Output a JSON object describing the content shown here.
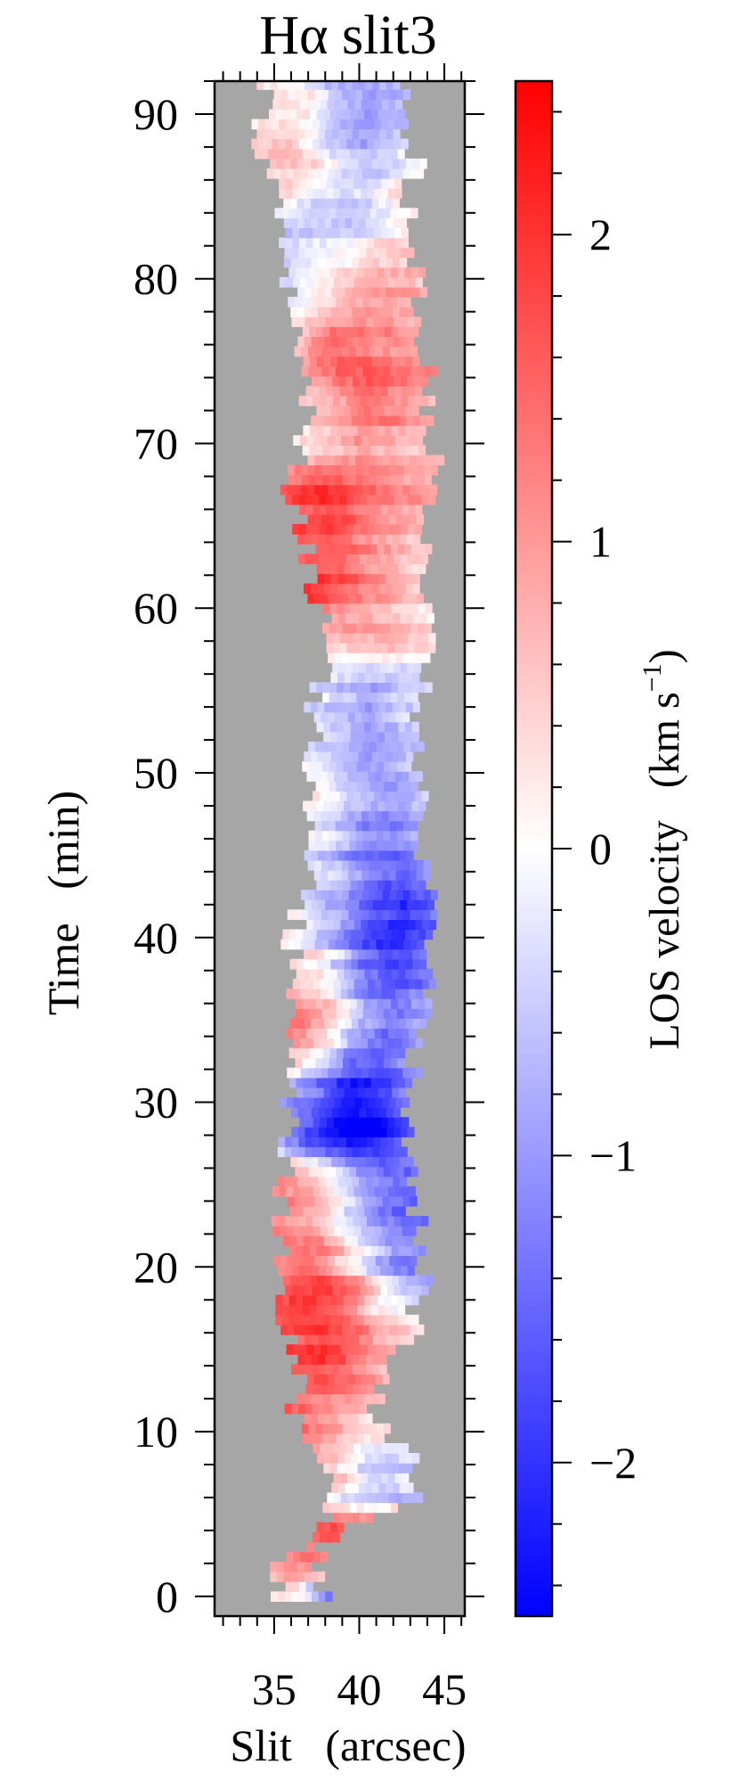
{
  "chart_data": {
    "type": "heatmap",
    "title": "Hα slit3",
    "xlabel": "Slit   (arcsec)",
    "ylabel": "Time   (min)",
    "xlim": [
      31.5,
      46.2
    ],
    "ylim": [
      -1.2,
      92.0
    ],
    "x_ticks": [
      35,
      40,
      45
    ],
    "y_ticks": [
      0,
      10,
      20,
      30,
      40,
      50,
      60,
      70,
      80,
      90
    ],
    "background_color": "#a6a6a6",
    "colorbar": {
      "label": "LOS velocity   (km s",
      "label_superscript": "−1",
      "label_close": ")",
      "range": [
        -2.5,
        2.5
      ],
      "ticks": [
        2,
        1,
        0,
        -1,
        -2
      ],
      "tick_labels": [
        "2",
        "1",
        "0",
        "−1",
        "−2"
      ],
      "colormap": [
        "#0000ff",
        "#ffffff",
        "#ff0000"
      ]
    },
    "bands": [
      {
        "t": 91.2,
        "start": 34.6,
        "end": 42.5,
        "v": [
          0.4,
          0.3,
          -0.6,
          -0.8,
          -0.5
        ]
      },
      {
        "t": 88.0,
        "start": 34.0,
        "end": 43.0,
        "v": [
          0.5,
          0.6,
          -0.5,
          -0.9,
          -0.4
        ]
      },
      {
        "t": 85.0,
        "start": 35.2,
        "end": 42.8,
        "v": [
          0.2,
          -0.3,
          -0.6,
          -0.4,
          0.3
        ]
      },
      {
        "t": 82.0,
        "start": 35.0,
        "end": 43.0,
        "v": [
          -0.6,
          -0.4,
          -0.2,
          0.2,
          0.4
        ]
      },
      {
        "t": 79.0,
        "start": 36.0,
        "end": 43.5,
        "v": [
          -0.3,
          0.2,
          0.8,
          1.0,
          0.6
        ]
      },
      {
        "t": 76.0,
        "start": 36.4,
        "end": 43.2,
        "v": [
          0.8,
          1.7,
          1.4,
          1.2,
          1.0
        ]
      },
      {
        "t": 73.0,
        "start": 37.0,
        "end": 44.0,
        "v": [
          0.6,
          1.0,
          1.5,
          1.2,
          0.9
        ]
      },
      {
        "t": 70.0,
        "start": 36.5,
        "end": 44.0,
        "v": [
          0.3,
          0.6,
          1.0,
          0.8,
          0.6
        ]
      },
      {
        "t": 67.0,
        "start": 36.0,
        "end": 44.0,
        "v": [
          1.6,
          2.0,
          1.4,
          1.0,
          0.8
        ]
      },
      {
        "t": 64.0,
        "start": 37.0,
        "end": 43.8,
        "v": [
          1.8,
          1.9,
          1.3,
          1.0,
          0.6
        ]
      },
      {
        "t": 61.0,
        "start": 37.0,
        "end": 43.5,
        "v": [
          1.9,
          1.5,
          1.0,
          0.7,
          0.4
        ]
      },
      {
        "t": 58.0,
        "start": 38.5,
        "end": 44.0,
        "v": [
          0.4,
          0.6,
          0.8,
          0.5,
          0.3
        ]
      },
      {
        "t": 55.0,
        "start": 37.5,
        "end": 43.5,
        "v": [
          -0.4,
          -0.8,
          -1.0,
          -0.6,
          -0.4
        ]
      },
      {
        "t": 52.0,
        "start": 37.2,
        "end": 43.0,
        "v": [
          -0.3,
          -0.5,
          -0.9,
          -0.7,
          -0.3
        ]
      },
      {
        "t": 49.0,
        "start": 37.0,
        "end": 43.0,
        "v": [
          0.2,
          -0.4,
          -0.8,
          -1.0,
          -0.6
        ]
      },
      {
        "t": 46.0,
        "start": 37.5,
        "end": 43.5,
        "v": [
          -0.2,
          -0.6,
          -1.2,
          -1.3,
          -0.8
        ]
      },
      {
        "t": 43.0,
        "start": 37.0,
        "end": 44.0,
        "v": [
          -0.4,
          -0.8,
          -1.4,
          -1.8,
          -1.2
        ]
      },
      {
        "t": 40.0,
        "start": 36.0,
        "end": 43.5,
        "v": [
          0.3,
          -0.6,
          -1.6,
          -2.1,
          -1.6
        ]
      },
      {
        "t": 37.0,
        "start": 36.5,
        "end": 44.0,
        "v": [
          0.6,
          0.2,
          -1.2,
          -1.7,
          -1.0
        ]
      },
      {
        "t": 34.0,
        "start": 35.5,
        "end": 43.0,
        "v": [
          1.6,
          0.8,
          -0.6,
          -1.2,
          -0.8
        ]
      },
      {
        "t": 31.0,
        "start": 36.0,
        "end": 43.0,
        "v": [
          -0.8,
          -1.6,
          -2.3,
          -2.0,
          -1.2
        ]
      },
      {
        "t": 28.0,
        "start": 36.0,
        "end": 42.5,
        "v": [
          -1.2,
          -2.2,
          -2.6,
          -2.3,
          -1.4
        ]
      },
      {
        "t": 25.0,
        "start": 35.5,
        "end": 43.0,
        "v": [
          1.2,
          0.8,
          -0.4,
          -1.2,
          -1.6
        ]
      },
      {
        "t": 22.0,
        "start": 35.5,
        "end": 43.5,
        "v": [
          1.3,
          1.0,
          -0.3,
          -1.0,
          -1.4
        ]
      },
      {
        "t": 19.0,
        "start": 35.0,
        "end": 43.5,
        "v": [
          1.4,
          1.8,
          1.0,
          -0.6,
          -1.2
        ]
      },
      {
        "t": 16.0,
        "start": 36.0,
        "end": 43.0,
        "v": [
          1.8,
          2.0,
          1.6,
          0.8,
          0.4
        ]
      },
      {
        "t": 13.0,
        "start": 36.5,
        "end": 40.5,
        "v": [
          1.6,
          1.7,
          1.5,
          1.2,
          0.8
        ]
      },
      {
        "t": 10.0,
        "start": 36.0,
        "end": 41.0,
        "v": [
          1.3,
          1.0,
          0.6,
          0.4,
          0.2
        ]
      },
      {
        "t": 8.0,
        "start": 37.5,
        "end": 43.0,
        "v": [
          0.8,
          0.3,
          -0.5,
          -0.6,
          -0.4
        ]
      },
      {
        "t": 6.0,
        "start": 38.5,
        "end": 43.5,
        "v": [
          0.2,
          -0.4,
          -0.6,
          -0.5,
          -0.3
        ]
      },
      {
        "t": 4.0,
        "start": 37.5,
        "end": 38.5,
        "v": [
          1.8,
          1.9,
          2.0,
          1.9,
          1.8
        ]
      },
      {
        "t": 1.5,
        "start": 34.6,
        "end": 37.0,
        "v": [
          0.6,
          0.8,
          0.9,
          0.7,
          0.6
        ]
      },
      {
        "t": 0.2,
        "start": 35.5,
        "end": 37.5,
        "v": [
          0.4,
          0.3,
          0.1,
          -0.6,
          -1.4
        ]
      }
    ]
  }
}
